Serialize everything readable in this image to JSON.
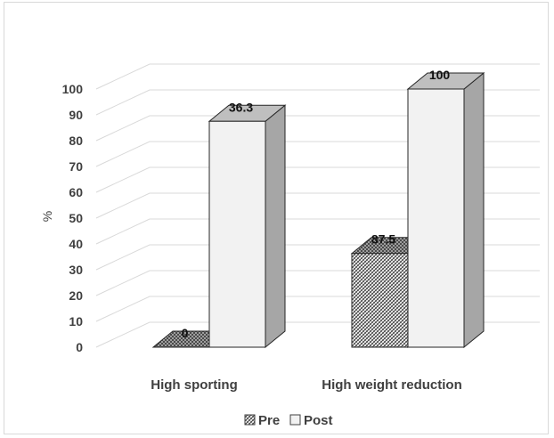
{
  "chart_data": {
    "type": "bar",
    "style": "3d-clustered-column",
    "categories": [
      "High sporting",
      "High weight reduction"
    ],
    "series": [
      {
        "name": "Pre",
        "values": [
          0,
          36.3
        ],
        "fill": "diagonal-crosshatch",
        "color": "#404040"
      },
      {
        "name": "Post",
        "values": [
          87.5,
          100
        ],
        "fill": "solid",
        "color": "#f2f2f2"
      }
    ],
    "data_labels": [
      "0",
      "36.3",
      "87.5",
      "100"
    ],
    "yticks": [
      "0",
      "10",
      "20",
      "30",
      "40",
      "50",
      "60",
      "70",
      "80",
      "90",
      "100"
    ],
    "ylabel": "%",
    "ylim": [
      0,
      100
    ],
    "grid": true,
    "legend": "bottom",
    "legend_labels": [
      "Pre",
      "Post"
    ]
  }
}
